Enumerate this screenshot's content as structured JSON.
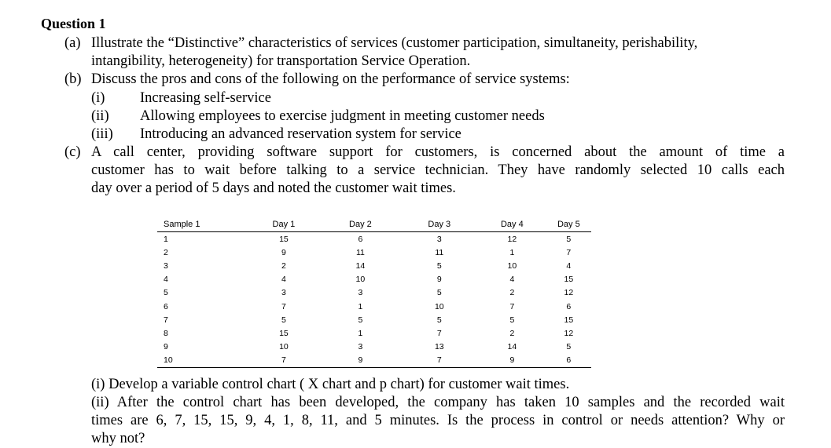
{
  "question": {
    "title": "Question 1",
    "a": {
      "label": "(a)",
      "line1": "Illustrate the “Distinctive” characteristics of services (customer participation, simultaneity, perishability,",
      "line2": "intangibility, heterogeneity) for transportation Service Operation."
    },
    "b": {
      "label": "(b)",
      "line1": "Discuss the pros and cons of the following on the performance of service systems:",
      "items": [
        {
          "num": "(i)",
          "text": "Increasing self-service"
        },
        {
          "num": "(ii)",
          "text": "Allowing employees to exercise judgment in meeting customer needs"
        },
        {
          "num": "(iii)",
          "text": "Introducing an advanced reservation system for service"
        }
      ]
    },
    "c": {
      "label": "(c)",
      "line1": "A call center, providing software support for customers, is concerned about the amount of time a",
      "line2": "customer has to wait before talking to a service technician. They have randomly selected 10 calls each",
      "line3": "day over a period of 5 days and noted the customer wait times.",
      "sub_i": "(i) Develop a variable control chart ( X chart and p chart) for customer wait times.",
      "sub_ii_line1": "(ii) After the control chart has been developed, the company has taken 10 samples and the recorded wait",
      "sub_ii_line2": "times are 6, 7, 15, 15, 9, 4, 1, 8, 11, and 5 minutes. Is the process in control or needs attention? Why or",
      "sub_ii_line3": "why not?"
    }
  },
  "table": {
    "headers": [
      "Sample 1",
      "Day 1",
      "Day 2",
      "Day 3",
      "Day 4",
      "Day 5"
    ],
    "rows": [
      [
        "1",
        "15",
        "6",
        "3",
        "12",
        "5"
      ],
      [
        "2",
        "9",
        "11",
        "11",
        "1",
        "7"
      ],
      [
        "3",
        "2",
        "14",
        "5",
        "10",
        "4"
      ],
      [
        "4",
        "4",
        "10",
        "9",
        "4",
        "15"
      ],
      [
        "5",
        "3",
        "3",
        "5",
        "2",
        "12"
      ],
      [
        "6",
        "7",
        "1",
        "10",
        "7",
        "6"
      ],
      [
        "7",
        "5",
        "5",
        "5",
        "5",
        "15"
      ],
      [
        "8",
        "15",
        "1",
        "7",
        "2",
        "12"
      ],
      [
        "9",
        "10",
        "3",
        "13",
        "14",
        "5"
      ],
      [
        "10",
        "7",
        "9",
        "7",
        "9",
        "6"
      ]
    ]
  }
}
